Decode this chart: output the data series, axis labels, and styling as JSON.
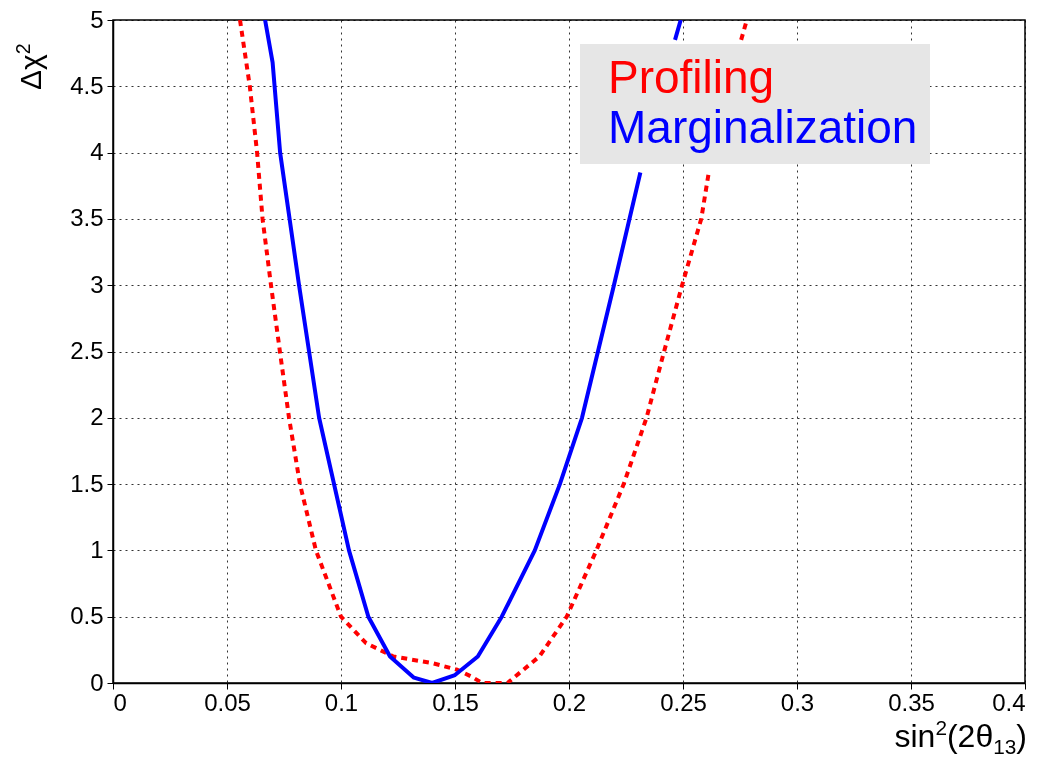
{
  "chart_data": {
    "type": "line",
    "xlabel": "sin$^{2}$(2θ$_{13}$)",
    "ylabel": "Δχ$^{2}$",
    "xlim": [
      0,
      0.4
    ],
    "ylim": [
      0,
      5
    ],
    "xticks": [
      0,
      0.05,
      0.1,
      0.15,
      0.2,
      0.25,
      0.3,
      0.35,
      0.4
    ],
    "yticks": [
      0,
      0.5,
      1,
      1.5,
      2,
      2.5,
      3,
      3.5,
      4,
      4.5,
      5
    ],
    "grid": true,
    "legend": "top right",
    "marker": "none",
    "series": [
      {
        "name": "Profiling",
        "color": "#ff0000",
        "line_style": "dotted",
        "x": [
          0.0557,
          0.06,
          0.0632,
          0.0656,
          0.0693,
          0.0732,
          0.0772,
          0.082,
          0.089,
          0.1,
          0.111,
          0.123,
          0.14,
          0.151,
          0.157,
          0.162,
          0.173,
          0.187,
          0.199,
          0.212,
          0.224,
          0.234,
          0.2417,
          0.2496,
          0.258,
          0.2613,
          0.2627,
          0.2706,
          0.2755,
          0.278
        ],
        "values": [
          5,
          4.5,
          4,
          3.5,
          3,
          2.5,
          2,
          1.5,
          1,
          0.5,
          0.3,
          0.2,
          0.15,
          0.1,
          0.05,
          0,
          0,
          0.2,
          0.5,
          1,
          1.5,
          2,
          2.5,
          3,
          3.5,
          3.85,
          null,
          null,
          4.85,
          5
        ]
      },
      {
        "name": "Marginalization",
        "color": "#0000ff",
        "line_style": "solid",
        "x": [
          0.0667,
          0.07,
          0.0733,
          0.0816,
          0.0904,
          0.1035,
          0.112,
          0.1215,
          0.132,
          0.14,
          0.15,
          0.16,
          0.1705,
          0.185,
          0.196,
          0.2057,
          0.2197,
          0.2313,
          0.2333,
          0.2465,
          0.249
        ],
        "values": [
          5,
          4.68,
          4,
          3,
          2,
          1,
          0.5,
          0.2,
          0.04,
          0,
          0.06,
          0.2,
          0.5,
          1,
          1.5,
          2,
          3,
          3.85,
          null,
          4.85,
          5
        ]
      }
    ]
  }
}
